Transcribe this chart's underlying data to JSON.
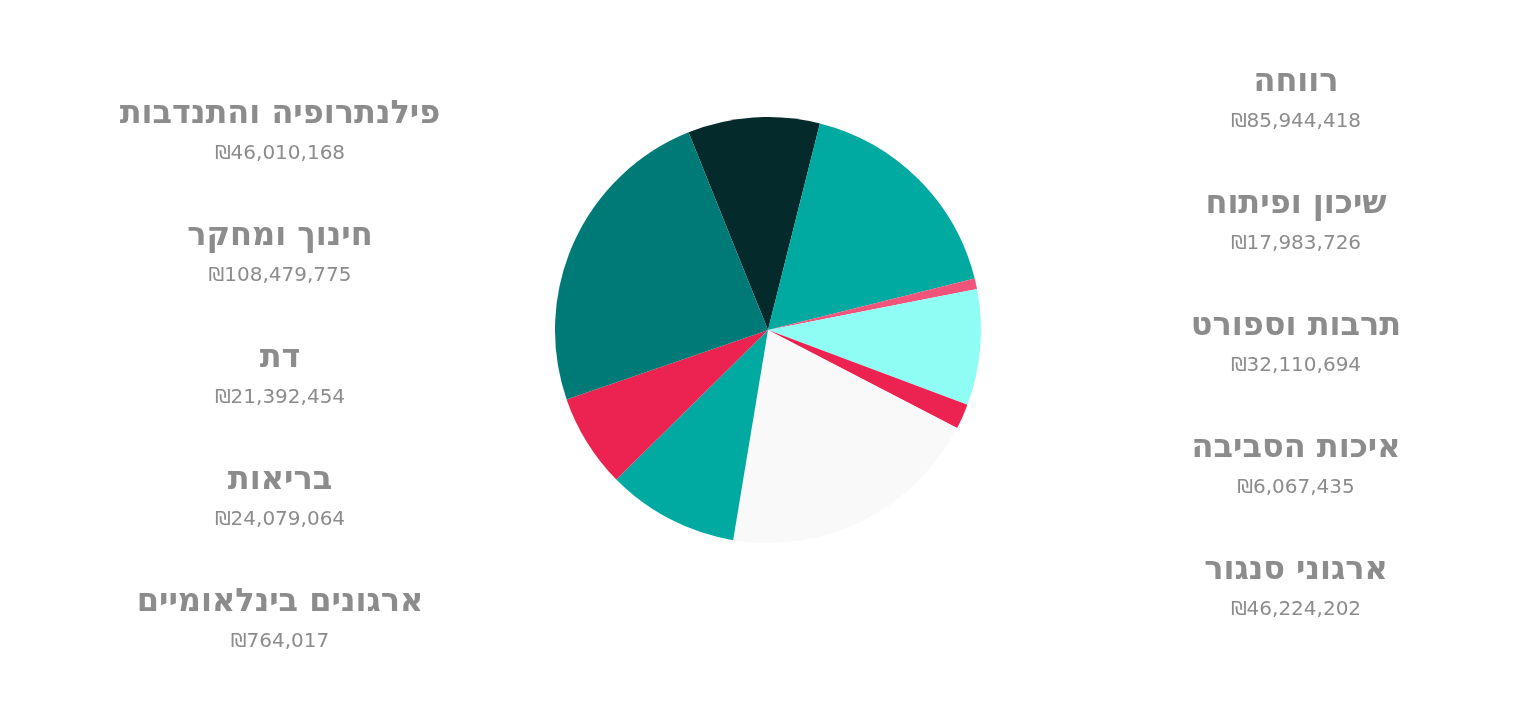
{
  "chart_data": {
    "type": "pie",
    "categories": [
      null,
      null,
      null,
      null,
      null,
      null,
      null,
      null,
      null
    ],
    "values": [
      10.0,
      17.2,
      0.8,
      8.8,
      1.9,
      20.0,
      10.0,
      7.1,
      24.2
    ],
    "colors": [
      "#042a2b",
      "#00aaa1",
      "#f0547a",
      "#90fdf4",
      "#ec2350",
      "#f9f9f9",
      "#00aaa1",
      "#ec2350",
      "#007a76"
    ],
    "annotations": [
      "פילנתרופיה והתנדבות",
      "₪46,010,168",
      "חינוך ומחקר",
      "₪108,479,775",
      "דת",
      "₪21,392,454",
      "בריאות",
      "₪24,079,064",
      "ארגונים בינלאומיים",
      "₪764,017",
      "רווחה",
      "₪85,944,418",
      "שיכון ופיתוח",
      "₪17,983,726",
      "תרבות וספורט",
      "₪32,110,694",
      "איכות הסביבה",
      "₪6,067,435",
      "ארגוני סנגור",
      "₪46,224,202"
    ]
  }
}
